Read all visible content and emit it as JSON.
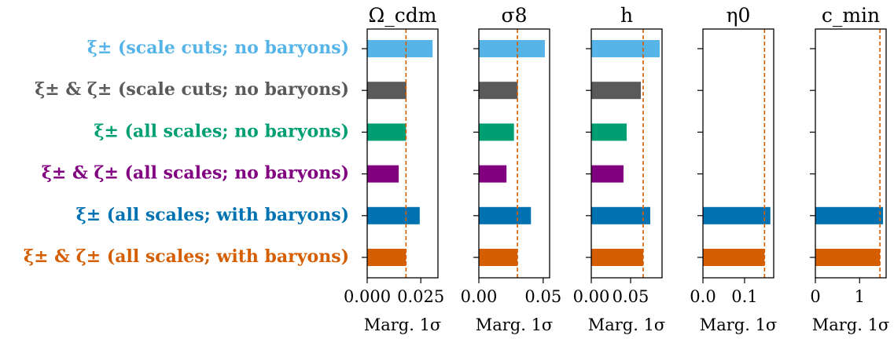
{
  "chart_data": {
    "type": "bar",
    "orientation": "horizontal",
    "categories": [
      {
        "label": "ξ± (scale cuts; no baryons)",
        "color": "#56b4e9"
      },
      {
        "label": "ξ± & ζ± (scale cuts; no baryons)",
        "color": "#5a5a5a"
      },
      {
        "label": "ξ± (all scales; no baryons)",
        "color": "#009e73"
      },
      {
        "label": "ξ± & ζ± (all scales; no baryons)",
        "color": "#800080"
      },
      {
        "label": "ξ± (all scales; with baryons)",
        "color": "#0072b2"
      },
      {
        "label": "ξ± & ζ± (all scales; with baryons)",
        "color": "#d55e00"
      }
    ],
    "reference_line_color": "#d55e00",
    "panels": [
      {
        "title": "Ω_cdm",
        "xlabel": "Marg. 1σ",
        "xlim": [
          0,
          0.033
        ],
        "xticks": [
          0,
          0.025
        ],
        "xtick_labels": [
          "0.000",
          "0.025"
        ],
        "values": [
          0.0305,
          0.0183,
          0.0181,
          0.0147,
          0.0245,
          0.0181
        ],
        "reference_line": 0.0181
      },
      {
        "title": "σ8",
        "xlabel": "Marg. 1σ",
        "xlim": [
          0,
          0.055
        ],
        "xticks": [
          0,
          0.05
        ],
        "xtick_labels": [
          "0.00",
          "0.05"
        ],
        "values": [
          0.0513,
          0.0302,
          0.0273,
          0.0215,
          0.0405,
          0.03
        ],
        "reference_line": 0.03
      },
      {
        "title": "h",
        "xlabel": "Marg. 1σ",
        "xlim": [
          0,
          0.09
        ],
        "xticks": [
          0,
          0.05
        ],
        "xtick_labels": [
          "0.00",
          "0.05"
        ],
        "values": [
          0.087,
          0.063,
          0.045,
          0.041,
          0.075,
          0.066
        ],
        "reference_line": 0.066
      },
      {
        "title": "η0",
        "xlabel": "Marg. 1σ",
        "xlim": [
          0,
          0.17
        ],
        "xticks": [
          0,
          0.1
        ],
        "xtick_labels": [
          "0.0",
          "0.1"
        ],
        "values": [
          null,
          null,
          null,
          null,
          0.162,
          0.148
        ],
        "reference_line": 0.148
      },
      {
        "title": "c_min",
        "xlabel": "Marg. 1σ",
        "xlim": [
          0,
          1.6
        ],
        "xticks": [
          0,
          1
        ],
        "xtick_labels": [
          "0",
          "1"
        ],
        "values": [
          null,
          null,
          null,
          null,
          1.53,
          1.46
        ],
        "reference_line": 1.46
      }
    ]
  }
}
